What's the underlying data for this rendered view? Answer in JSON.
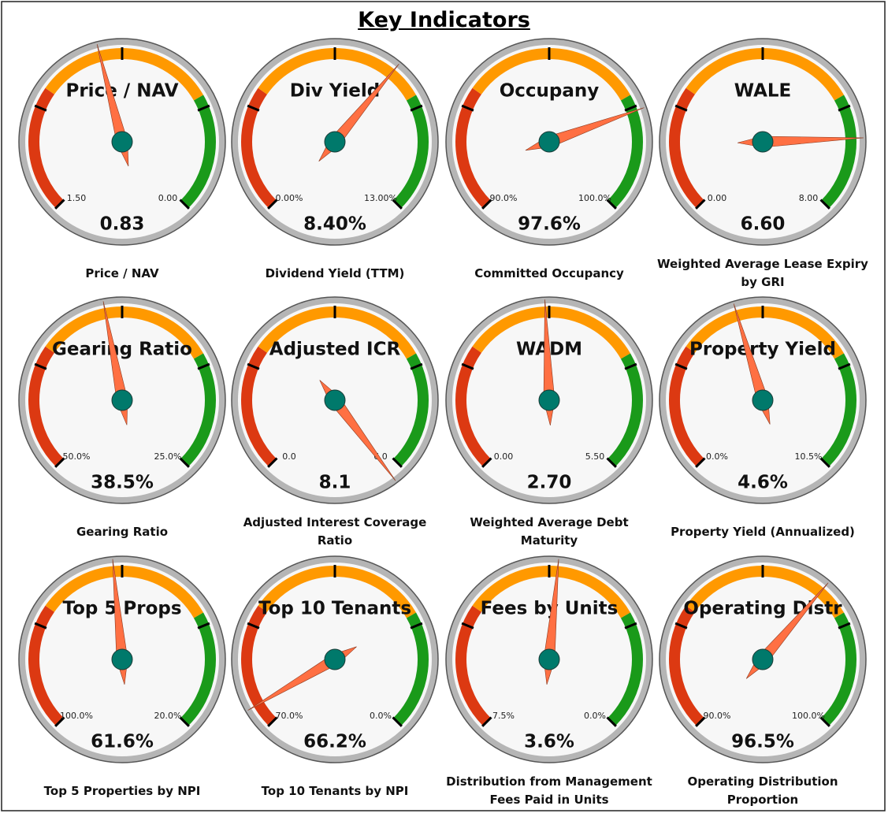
{
  "page_title": "Key Indicators",
  "chart_data": [
    {
      "type": "gauge",
      "title": "Price / NAV",
      "caption": "Price / NAV",
      "ticks": [
        {
          "value": 1.5,
          "label": "1.50"
        },
        {
          "value": 0,
          "label": "0.00"
        }
      ],
      "value": 0.83
    },
    {
      "type": "gauge",
      "title": "Div Yield",
      "caption": "Dividend Yield (TTM)",
      "ticks": [
        {
          "value": 0,
          "label": "0.00%"
        },
        {
          "value": 13,
          "label": "13.00%"
        }
      ],
      "value": 8.4,
      "value_label": "8.40%"
    },
    {
      "type": "gauge",
      "title": "Occupany",
      "caption": "Committed Occupancy",
      "ticks": [
        {
          "value": 90,
          "label": "90.0%"
        },
        {
          "value": 100,
          "label": "100.0%"
        }
      ],
      "value": 97.6,
      "value_label": "97.6%"
    },
    {
      "type": "gauge",
      "title": "WALE",
      "caption": "Weighted Average Lease Expiry by GRI",
      "ticks": [
        {
          "value": 0,
          "label": "0.00"
        },
        {
          "value": 8,
          "label": "8.00"
        }
      ],
      "value": 6.6,
      "value_label": "6.60"
    },
    {
      "type": "gauge",
      "title": "Gearing Ratio",
      "caption": "Gearing Ratio",
      "ticks": [
        {
          "value": 50,
          "label": "50.0%"
        },
        {
          "value": 25,
          "label": "25.0%"
        }
      ],
      "value": 38.5,
      "value_label": "38.5%"
    },
    {
      "type": "gauge",
      "title": "Adjusted ICR",
      "caption": "Adjusted Interest Coverage Ratio",
      "ticks": [
        {
          "value": 0,
          "label": "0.0"
        },
        {
          "value": 6,
          "label": "6.0"
        }
      ],
      "value": 8.1
    },
    {
      "type": "gauge",
      "title": "WADM",
      "caption": "Weighted Average Debt Maturity",
      "ticks": [
        {
          "value": 0,
          "label": "0.00"
        },
        {
          "value": 5.5,
          "label": "5.50"
        }
      ],
      "value": 2.7,
      "value_label": "2.70"
    },
    {
      "type": "gauge",
      "title": "Property Yield",
      "caption": "Property Yield (Annualized)",
      "ticks": [
        {
          "value": 0,
          "label": "0.0%"
        },
        {
          "value": 10.5,
          "label": "10.5%"
        }
      ],
      "value": 4.6,
      "value_label": "4.6%"
    },
    {
      "type": "gauge",
      "title": "Top 5 Props",
      "caption": "Top 5 Properties by NPI",
      "ticks": [
        {
          "value": 100,
          "label": "100.0%"
        },
        {
          "value": 20,
          "label": "20.0%"
        }
      ],
      "value": 61.6,
      "value_label": "61.6%"
    },
    {
      "type": "gauge",
      "title": "Top 10 Tenants",
      "caption": "Top 10 Tenants by NPI",
      "ticks": [
        {
          "value": 70,
          "label": "70.0%"
        },
        {
          "value": 0,
          "label": "0.0%"
        }
      ],
      "value": 66.2,
      "value_label": "66.2%"
    },
    {
      "type": "gauge",
      "title": "Fees by Units",
      "caption": "Distribution from Management Fees Paid in Units",
      "ticks": [
        {
          "value": 7.5,
          "label": "7.5%"
        },
        {
          "value": 0,
          "label": "0.0%"
        }
      ],
      "value": 3.6,
      "value_label": "3.6%"
    },
    {
      "type": "gauge",
      "title": "Operating Distr",
      "caption": "Operating Distribution Proportion",
      "ticks": [
        {
          "value": 90,
          "label": "90.0%"
        },
        {
          "value": 100,
          "label": "100.0%"
        }
      ],
      "value": 96.5,
      "value_label": "96.5%"
    }
  ]
}
